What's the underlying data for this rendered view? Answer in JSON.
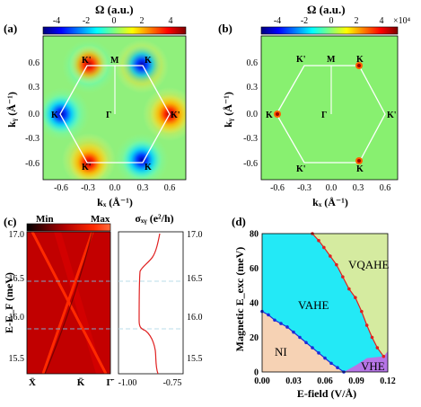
{
  "panel_labels": {
    "a": "(a)",
    "b": "(b)",
    "c": "(c)",
    "d": "(d)"
  },
  "colorbar_a": {
    "title": "Ω (a.u.)",
    "ticks": [
      "-4",
      "-2",
      "0",
      "2",
      "4"
    ]
  },
  "colorbar_b": {
    "title": "Ω (a.u.)",
    "ticks": [
      "-4",
      "-2",
      "0",
      "2",
      "4"
    ],
    "multiplier": "×10⁴"
  },
  "bz_labels": {
    "K": "K",
    "Kp": "K'",
    "M": "M",
    "Gamma": "Γ"
  },
  "axis_ab": {
    "ylabel": "kᵧ (Å⁻¹)",
    "xlabel": "kₓ (Å⁻¹)",
    "yticks": [
      "0.6",
      "0.3",
      "0.0",
      "-0.3",
      "-0.6"
    ],
    "xticks": [
      "-0.6",
      "-0.3",
      "0.0",
      "0.3",
      "0.6"
    ]
  },
  "panel_c": {
    "colorbar": {
      "min_label": "Min",
      "max_label": "Max"
    },
    "ylabel": "E-E_F (meV)",
    "yticks": [
      "17.0",
      "16.5",
      "16.0",
      "15.5"
    ],
    "xticks": [
      "X̄",
      "K̄",
      "Γ̄"
    ],
    "sigma_title": "σₓᵧ (e²/h)",
    "sigma_xticks": [
      "-1.00",
      "-0.75"
    ],
    "sigma_yticks": [
      "17.0",
      "16.5",
      "16.0",
      "15.5"
    ]
  },
  "chart_data": {
    "type": "area",
    "title": "",
    "xlabel": "E-field (V/Å)",
    "ylabel": "Magnetic E_exc (meV)",
    "xlim": [
      0,
      0.12
    ],
    "ylim": [
      0,
      80
    ],
    "xticks": [
      "0.00",
      "0.03",
      "0.06",
      "0.09",
      "0.12"
    ],
    "yticks": [
      "0",
      "20",
      "40",
      "60",
      "80"
    ],
    "regions": [
      "NI",
      "VAHE",
      "VQAHE",
      "VHE"
    ],
    "colors": {
      "NI": "#f6d2b4",
      "VAHE": "#23e9f6",
      "VQAHE": "#d5eba0",
      "VHE": "#b675e6"
    },
    "series": [
      {
        "name": "upper",
        "color": "#e02020",
        "x": [
          0.048,
          0.054,
          0.059,
          0.065,
          0.071,
          0.077,
          0.083,
          0.089,
          0.095,
          0.1,
          0.105,
          0.11,
          0.116
        ],
        "y": [
          80,
          76,
          72,
          67,
          62,
          55,
          48,
          43,
          35,
          27,
          20,
          14,
          9
        ]
      },
      {
        "name": "lower",
        "color": "#1c2bd8",
        "x": [
          0.0,
          0.006,
          0.012,
          0.018,
          0.024,
          0.03,
          0.036,
          0.042,
          0.048,
          0.054,
          0.06,
          0.066,
          0.072,
          0.078
        ],
        "y": [
          35,
          33,
          30,
          28,
          26,
          23,
          20,
          17,
          14,
          11,
          8,
          5,
          2.5,
          0
        ]
      }
    ]
  }
}
